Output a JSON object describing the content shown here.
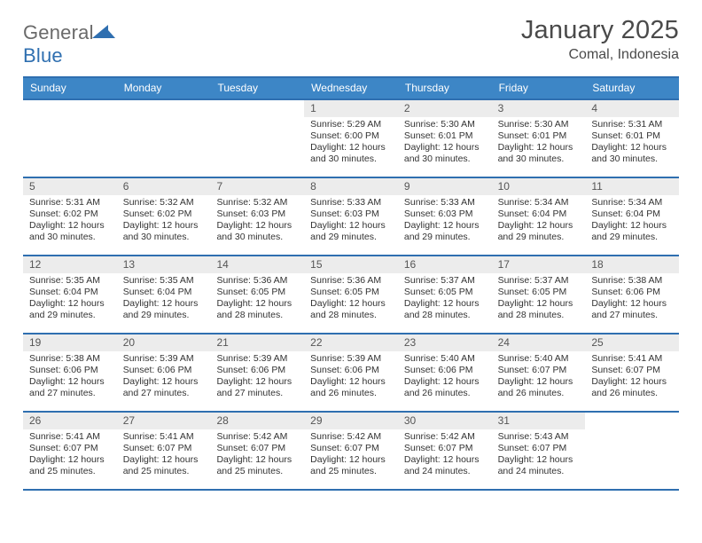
{
  "logo": {
    "word1": "General",
    "word2": "Blue"
  },
  "title": "January 2025",
  "location": "Comal, Indonesia",
  "colors": {
    "header_bg": "#3d86c6",
    "header_border": "#2f6fb0",
    "daynum_bg": "#ececec",
    "text": "#333333"
  },
  "daysOfWeek": [
    "Sunday",
    "Monday",
    "Tuesday",
    "Wednesday",
    "Thursday",
    "Friday",
    "Saturday"
  ],
  "weeks": [
    [
      {
        "n": "",
        "lines": []
      },
      {
        "n": "",
        "lines": []
      },
      {
        "n": "",
        "lines": []
      },
      {
        "n": "1",
        "lines": [
          "Sunrise: 5:29 AM",
          "Sunset: 6:00 PM",
          "Daylight: 12 hours",
          "and 30 minutes."
        ]
      },
      {
        "n": "2",
        "lines": [
          "Sunrise: 5:30 AM",
          "Sunset: 6:01 PM",
          "Daylight: 12 hours",
          "and 30 minutes."
        ]
      },
      {
        "n": "3",
        "lines": [
          "Sunrise: 5:30 AM",
          "Sunset: 6:01 PM",
          "Daylight: 12 hours",
          "and 30 minutes."
        ]
      },
      {
        "n": "4",
        "lines": [
          "Sunrise: 5:31 AM",
          "Sunset: 6:01 PM",
          "Daylight: 12 hours",
          "and 30 minutes."
        ]
      }
    ],
    [
      {
        "n": "5",
        "lines": [
          "Sunrise: 5:31 AM",
          "Sunset: 6:02 PM",
          "Daylight: 12 hours",
          "and 30 minutes."
        ]
      },
      {
        "n": "6",
        "lines": [
          "Sunrise: 5:32 AM",
          "Sunset: 6:02 PM",
          "Daylight: 12 hours",
          "and 30 minutes."
        ]
      },
      {
        "n": "7",
        "lines": [
          "Sunrise: 5:32 AM",
          "Sunset: 6:03 PM",
          "Daylight: 12 hours",
          "and 30 minutes."
        ]
      },
      {
        "n": "8",
        "lines": [
          "Sunrise: 5:33 AM",
          "Sunset: 6:03 PM",
          "Daylight: 12 hours",
          "and 29 minutes."
        ]
      },
      {
        "n": "9",
        "lines": [
          "Sunrise: 5:33 AM",
          "Sunset: 6:03 PM",
          "Daylight: 12 hours",
          "and 29 minutes."
        ]
      },
      {
        "n": "10",
        "lines": [
          "Sunrise: 5:34 AM",
          "Sunset: 6:04 PM",
          "Daylight: 12 hours",
          "and 29 minutes."
        ]
      },
      {
        "n": "11",
        "lines": [
          "Sunrise: 5:34 AM",
          "Sunset: 6:04 PM",
          "Daylight: 12 hours",
          "and 29 minutes."
        ]
      }
    ],
    [
      {
        "n": "12",
        "lines": [
          "Sunrise: 5:35 AM",
          "Sunset: 6:04 PM",
          "Daylight: 12 hours",
          "and 29 minutes."
        ]
      },
      {
        "n": "13",
        "lines": [
          "Sunrise: 5:35 AM",
          "Sunset: 6:04 PM",
          "Daylight: 12 hours",
          "and 29 minutes."
        ]
      },
      {
        "n": "14",
        "lines": [
          "Sunrise: 5:36 AM",
          "Sunset: 6:05 PM",
          "Daylight: 12 hours",
          "and 28 minutes."
        ]
      },
      {
        "n": "15",
        "lines": [
          "Sunrise: 5:36 AM",
          "Sunset: 6:05 PM",
          "Daylight: 12 hours",
          "and 28 minutes."
        ]
      },
      {
        "n": "16",
        "lines": [
          "Sunrise: 5:37 AM",
          "Sunset: 6:05 PM",
          "Daylight: 12 hours",
          "and 28 minutes."
        ]
      },
      {
        "n": "17",
        "lines": [
          "Sunrise: 5:37 AM",
          "Sunset: 6:05 PM",
          "Daylight: 12 hours",
          "and 28 minutes."
        ]
      },
      {
        "n": "18",
        "lines": [
          "Sunrise: 5:38 AM",
          "Sunset: 6:06 PM",
          "Daylight: 12 hours",
          "and 27 minutes."
        ]
      }
    ],
    [
      {
        "n": "19",
        "lines": [
          "Sunrise: 5:38 AM",
          "Sunset: 6:06 PM",
          "Daylight: 12 hours",
          "and 27 minutes."
        ]
      },
      {
        "n": "20",
        "lines": [
          "Sunrise: 5:39 AM",
          "Sunset: 6:06 PM",
          "Daylight: 12 hours",
          "and 27 minutes."
        ]
      },
      {
        "n": "21",
        "lines": [
          "Sunrise: 5:39 AM",
          "Sunset: 6:06 PM",
          "Daylight: 12 hours",
          "and 27 minutes."
        ]
      },
      {
        "n": "22",
        "lines": [
          "Sunrise: 5:39 AM",
          "Sunset: 6:06 PM",
          "Daylight: 12 hours",
          "and 26 minutes."
        ]
      },
      {
        "n": "23",
        "lines": [
          "Sunrise: 5:40 AM",
          "Sunset: 6:06 PM",
          "Daylight: 12 hours",
          "and 26 minutes."
        ]
      },
      {
        "n": "24",
        "lines": [
          "Sunrise: 5:40 AM",
          "Sunset: 6:07 PM",
          "Daylight: 12 hours",
          "and 26 minutes."
        ]
      },
      {
        "n": "25",
        "lines": [
          "Sunrise: 5:41 AM",
          "Sunset: 6:07 PM",
          "Daylight: 12 hours",
          "and 26 minutes."
        ]
      }
    ],
    [
      {
        "n": "26",
        "lines": [
          "Sunrise: 5:41 AM",
          "Sunset: 6:07 PM",
          "Daylight: 12 hours",
          "and 25 minutes."
        ]
      },
      {
        "n": "27",
        "lines": [
          "Sunrise: 5:41 AM",
          "Sunset: 6:07 PM",
          "Daylight: 12 hours",
          "and 25 minutes."
        ]
      },
      {
        "n": "28",
        "lines": [
          "Sunrise: 5:42 AM",
          "Sunset: 6:07 PM",
          "Daylight: 12 hours",
          "and 25 minutes."
        ]
      },
      {
        "n": "29",
        "lines": [
          "Sunrise: 5:42 AM",
          "Sunset: 6:07 PM",
          "Daylight: 12 hours",
          "and 25 minutes."
        ]
      },
      {
        "n": "30",
        "lines": [
          "Sunrise: 5:42 AM",
          "Sunset: 6:07 PM",
          "Daylight: 12 hours",
          "and 24 minutes."
        ]
      },
      {
        "n": "31",
        "lines": [
          "Sunrise: 5:43 AM",
          "Sunset: 6:07 PM",
          "Daylight: 12 hours",
          "and 24 minutes."
        ]
      },
      {
        "n": "",
        "lines": []
      }
    ]
  ]
}
